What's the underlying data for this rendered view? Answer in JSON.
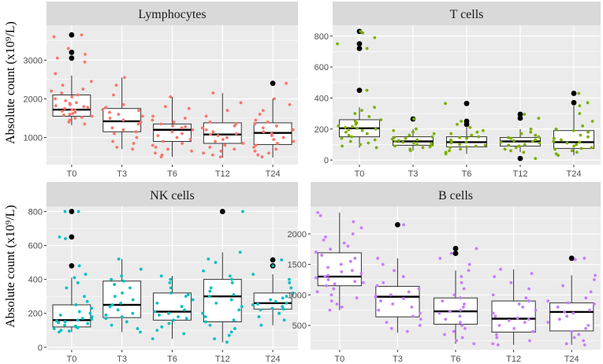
{
  "ylabel": "Absolute count (x10⁹/L)",
  "colors": {
    "panel_bg": "#ebebeb",
    "strip_bg": "#d9d9d9",
    "grid": "#ffffff",
    "outlier": "#000000",
    "lymphocytes": "#f8766d",
    "t_cells": "#7cae00",
    "nk_cells": "#00bfc4",
    "b_cells": "#c77cff"
  },
  "chart_data": [
    {
      "type": "box",
      "id": "lymphocytes",
      "title": "Lymphocytes",
      "categories": [
        "T0",
        "T3",
        "T6",
        "T12",
        "T24"
      ],
      "yticks": [
        1000,
        2000,
        3000
      ],
      "ylim": [
        300,
        3900
      ],
      "boxes": [
        {
          "q1": 1550,
          "median": 1720,
          "q3": 2100,
          "whisker_low": 1320,
          "whisker_high": 2600,
          "outliers": [
            3650,
            3200,
            3050
          ]
        },
        {
          "q1": 1150,
          "median": 1420,
          "q3": 1750,
          "whisker_low": 700,
          "whisker_high": 2550,
          "outliers": []
        },
        {
          "q1": 900,
          "median": 1200,
          "q3": 1350,
          "whisker_low": 500,
          "whisker_high": 2050,
          "outliers": []
        },
        {
          "q1": 850,
          "median": 1080,
          "q3": 1380,
          "whisker_low": 480,
          "whisker_high": 2150,
          "outliers": []
        },
        {
          "q1": 820,
          "median": 1120,
          "q3": 1380,
          "whisker_low": 480,
          "whisker_high": 2000,
          "outliers": [
            2400
          ]
        }
      ],
      "points": [
        [
          3650,
          3600,
          3300,
          3150,
          3050,
          2950,
          2650,
          2450,
          2350,
          2250,
          2200,
          2150,
          2100,
          2050,
          2000,
          1950,
          1900,
          1880,
          1850,
          1820,
          1800,
          1780,
          1750,
          1720,
          1700,
          1680,
          1650,
          1620,
          1600,
          1580,
          1550,
          1520,
          1500,
          1450,
          1400,
          1350
        ],
        [
          2550,
          2350,
          2100,
          1850,
          1780,
          1720,
          1700,
          1650,
          1600,
          1550,
          1500,
          1450,
          1400,
          1350,
          1250,
          1200,
          1150,
          1100,
          1000,
          900,
          850,
          750,
          700
        ],
        [
          2050,
          1800,
          1750,
          1550,
          1500,
          1450,
          1400,
          1350,
          1300,
          1280,
          1250,
          1200,
          1150,
          1100,
          1050,
          1000,
          950,
          900,
          850,
          800,
          750,
          700,
          650,
          600,
          550,
          500
        ],
        [
          2150,
          1900,
          1700,
          1550,
          1400,
          1350,
          1300,
          1250,
          1200,
          1150,
          1100,
          1080,
          1050,
          1000,
          950,
          900,
          850,
          800,
          750,
          700,
          650,
          600,
          550,
          500
        ],
        [
          2400,
          2000,
          1850,
          1700,
          1600,
          1450,
          1400,
          1350,
          1300,
          1250,
          1200,
          1150,
          1100,
          1050,
          1000,
          950,
          900,
          850,
          800,
          750,
          700,
          650,
          600,
          550,
          500
        ]
      ]
    },
    {
      "type": "box",
      "id": "t_cells",
      "title": "T cells",
      "categories": [
        "T0",
        "T3",
        "T6",
        "T12",
        "T24"
      ],
      "yticks": [
        0,
        200,
        400,
        600,
        800
      ],
      "ylim": [
        -30,
        870
      ],
      "boxes": [
        {
          "q1": 150,
          "median": 205,
          "q3": 260,
          "whisker_low": 80,
          "whisker_high": 340,
          "outliers": [
            830,
            750,
            720,
            450
          ]
        },
        {
          "q1": 95,
          "median": 120,
          "q3": 150,
          "whisker_low": 60,
          "whisker_high": 200,
          "outliers": [
            265
          ]
        },
        {
          "q1": 85,
          "median": 115,
          "q3": 150,
          "whisker_low": 40,
          "whisker_high": 210,
          "outliers": [
            365,
            250,
            230
          ]
        },
        {
          "q1": 90,
          "median": 120,
          "q3": 145,
          "whisker_low": 50,
          "whisker_high": 200,
          "outliers": [
            295,
            270,
            10
          ]
        },
        {
          "q1": 75,
          "median": 115,
          "q3": 190,
          "whisker_low": 30,
          "whisker_high": 350,
          "outliers": [
            430,
            370
          ]
        }
      ],
      "points": [
        [
          830,
          820,
          790,
          750,
          720,
          450,
          340,
          320,
          300,
          280,
          260,
          250,
          240,
          230,
          220,
          215,
          210,
          205,
          200,
          195,
          190,
          180,
          170,
          160,
          150,
          140,
          130,
          120,
          110,
          100,
          90,
          80
        ],
        [
          265,
          200,
          190,
          180,
          170,
          160,
          150,
          145,
          140,
          135,
          130,
          125,
          120,
          115,
          110,
          105,
          100,
          95,
          90,
          85,
          80,
          70,
          60
        ],
        [
          365,
          250,
          230,
          210,
          190,
          180,
          170,
          160,
          150,
          145,
          140,
          130,
          120,
          115,
          110,
          100,
          95,
          90,
          85,
          80,
          70,
          60,
          50,
          40
        ],
        [
          295,
          270,
          200,
          180,
          170,
          160,
          150,
          145,
          140,
          130,
          125,
          120,
          115,
          110,
          100,
          95,
          90,
          80,
          70,
          60,
          50,
          10
        ],
        [
          430,
          370,
          350,
          300,
          250,
          220,
          200,
          190,
          180,
          160,
          150,
          140,
          130,
          120,
          115,
          110,
          100,
          90,
          80,
          75,
          70,
          60,
          50,
          40,
          30
        ]
      ]
    },
    {
      "type": "box",
      "id": "nk_cells",
      "title": "NK cells",
      "categories": [
        "T0",
        "T3",
        "T6",
        "T12",
        "T24"
      ],
      "yticks": [
        0,
        200,
        400,
        600,
        800
      ],
      "ylim": [
        -15,
        830
      ],
      "boxes": [
        {
          "q1": 120,
          "median": 160,
          "q3": 250,
          "whisker_low": 90,
          "whisker_high": 410,
          "outliers": [
            800,
            650,
            480
          ]
        },
        {
          "q1": 175,
          "median": 250,
          "q3": 390,
          "whisker_low": 90,
          "whisker_high": 520,
          "outliers": []
        },
        {
          "q1": 160,
          "median": 210,
          "q3": 320,
          "whisker_low": 50,
          "whisker_high": 420,
          "outliers": []
        },
        {
          "q1": 150,
          "median": 300,
          "q3": 400,
          "whisker_low": 30,
          "whisker_high": 560,
          "outliers": [
            800
          ]
        },
        {
          "q1": 225,
          "median": 260,
          "q3": 320,
          "whisker_low": 130,
          "whisker_high": 430,
          "outliers": [
            515,
            480
          ]
        }
      ],
      "points": [
        [
          800,
          800,
          650,
          640,
          480,
          430,
          410,
          380,
          350,
          300,
          270,
          250,
          230,
          210,
          200,
          190,
          180,
          170,
          165,
          160,
          155,
          150,
          145,
          140,
          130,
          125,
          120,
          115,
          110,
          100,
          95,
          90
        ],
        [
          520,
          460,
          420,
          400,
          390,
          370,
          350,
          320,
          300,
          280,
          260,
          250,
          240,
          220,
          200,
          190,
          180,
          170,
          150,
          130,
          110,
          90
        ],
        [
          420,
          400,
          380,
          350,
          320,
          310,
          300,
          280,
          260,
          240,
          220,
          210,
          200,
          190,
          180,
          170,
          160,
          140,
          120,
          100,
          80,
          50
        ],
        [
          800,
          560,
          520,
          500,
          450,
          420,
          400,
          380,
          350,
          330,
          310,
          300,
          280,
          260,
          240,
          220,
          200,
          180,
          160,
          150,
          130,
          110,
          90,
          70,
          50,
          30
        ],
        [
          515,
          480,
          430,
          400,
          380,
          350,
          320,
          300,
          290,
          280,
          270,
          260,
          255,
          250,
          240,
          230,
          225,
          220,
          200,
          180,
          160,
          130
        ]
      ]
    },
    {
      "type": "box",
      "id": "b_cells",
      "title": "B cells",
      "categories": [
        "T0",
        "T3",
        "T6",
        "T12",
        "T24"
      ],
      "yticks": [
        500,
        1000,
        1500,
        2000
      ],
      "ylim": [
        100,
        2450
      ],
      "boxes": [
        {
          "q1": 1150,
          "median": 1300,
          "q3": 1690,
          "whisker_low": 750,
          "whisker_high": 2350,
          "outliers": []
        },
        {
          "q1": 640,
          "median": 970,
          "q3": 1140,
          "whisker_low": 380,
          "whisker_high": 1600,
          "outliers": [
            2150
          ]
        },
        {
          "q1": 520,
          "median": 730,
          "q3": 950,
          "whisker_low": 200,
          "whisker_high": 1400,
          "outliers": [
            1760,
            1680
          ]
        },
        {
          "q1": 390,
          "median": 610,
          "q3": 900,
          "whisker_low": 180,
          "whisker_high": 1420,
          "outliers": []
        },
        {
          "q1": 410,
          "median": 720,
          "q3": 870,
          "whisker_low": 180,
          "whisker_high": 1320,
          "outliers": [
            1600
          ]
        }
      ],
      "points": [
        [
          2350,
          2300,
          2200,
          2100,
          2000,
          1950,
          1900,
          1850,
          1800,
          1750,
          1700,
          1650,
          1600,
          1550,
          1500,
          1450,
          1400,
          1380,
          1350,
          1320,
          1300,
          1280,
          1250,
          1220,
          1200,
          1180,
          1150,
          1100,
          1050,
          1000,
          950,
          900,
          850,
          800,
          750
        ],
        [
          2150,
          1600,
          1500,
          1400,
          1300,
          1200,
          1150,
          1100,
          1050,
          1000,
          980,
          960,
          940,
          900,
          850,
          800,
          750,
          700,
          650,
          600,
          550,
          500,
          450,
          400
        ],
        [
          1760,
          1680,
          1600,
          1500,
          1400,
          1300,
          1200,
          1100,
          1000,
          950,
          900,
          850,
          800,
          750,
          730,
          700,
          650,
          600,
          550,
          500,
          450,
          400,
          350,
          300,
          250,
          200
        ],
        [
          1420,
          1350,
          1300,
          1200,
          1100,
          1000,
          950,
          900,
          850,
          800,
          750,
          700,
          650,
          620,
          600,
          580,
          550,
          500,
          450,
          400,
          350,
          300,
          250,
          200,
          180
        ],
        [
          1600,
          1580,
          1320,
          1250,
          1150,
          1050,
          950,
          900,
          870,
          850,
          800,
          750,
          720,
          700,
          650,
          600,
          550,
          500,
          450,
          400,
          350,
          300,
          250,
          200,
          180
        ]
      ]
    }
  ]
}
